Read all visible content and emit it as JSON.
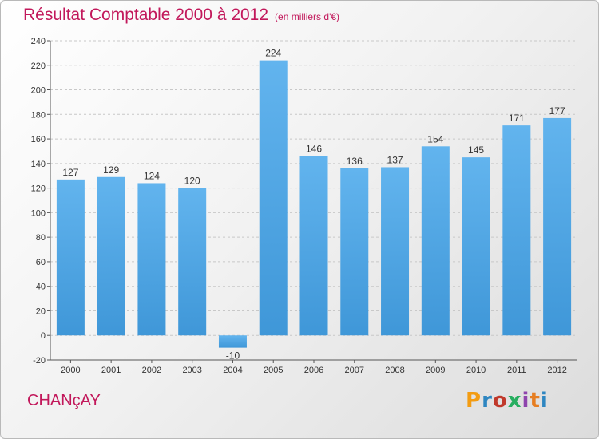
{
  "header": {
    "title": "Résultat Comptable 2000 à 2012",
    "subtitle": "(en milliers d'€)"
  },
  "footer": {
    "place": "CHANçAY",
    "logo": "Proxiti",
    "logo_colors": [
      "#f39c12",
      "#2e86c1",
      "#c0392b",
      "#27ae60",
      "#8e44ad",
      "#e67e22",
      "#2e86c1"
    ]
  },
  "chart_data": {
    "type": "bar",
    "categories": [
      "2000",
      "2001",
      "2002",
      "2003",
      "2004",
      "2005",
      "2006",
      "2007",
      "2008",
      "2009",
      "2010",
      "2011",
      "2012"
    ],
    "values": [
      127,
      129,
      124,
      120,
      -10,
      224,
      146,
      136,
      137,
      154,
      145,
      171,
      177
    ],
    "ylim": [
      -20,
      240
    ],
    "yticks": [
      -20,
      0,
      20,
      40,
      60,
      80,
      100,
      120,
      140,
      160,
      180,
      200,
      220,
      240
    ],
    "grid": true,
    "bar_color": "#3f97d8",
    "bar_color_light": "#62b4ee",
    "label_color": "#333333"
  }
}
